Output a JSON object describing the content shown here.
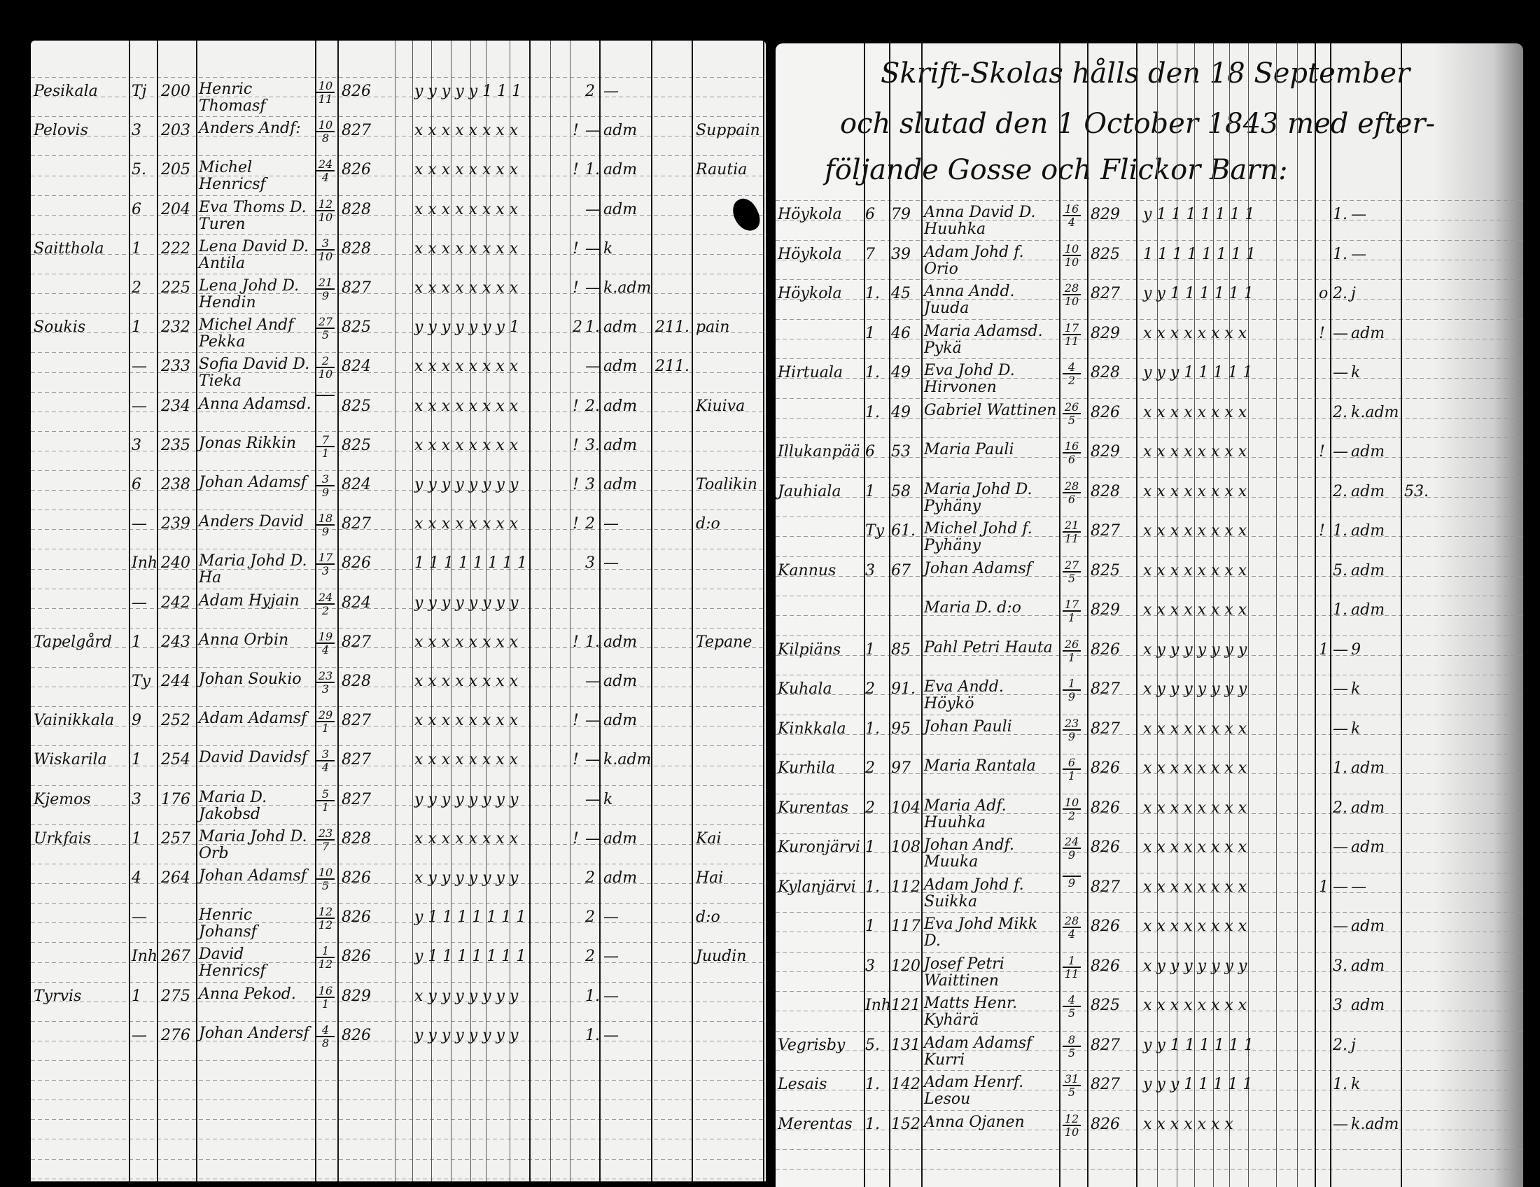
{
  "right_page_heading": {
    "line1": "Skrift-Skolas hålls den 18 September",
    "line2": "och slutad den 1 October 1843 med efter-",
    "line3": "följande Gosse och Flickor Barn:"
  },
  "left_page": {
    "rows": [
      {
        "village": "Pesikala",
        "nr": "Tj",
        "no": "200",
        "name": "Henric Thomasf",
        "day": "10",
        "month": "11",
        "year": "826",
        "marks": "y y y y y 1 1 1",
        "excl": "",
        "grade": "2",
        "status": "—",
        "extra": "",
        "note": ""
      },
      {
        "village": "Pelovis",
        "nr": "3",
        "no": "203",
        "name": "Anders Andf:",
        "day": "10",
        "month": "8",
        "year": "827",
        "marks": "x x x x x x x x",
        "excl": "!",
        "grade": "—",
        "status": "adm",
        "extra": "",
        "note": "Suppain"
      },
      {
        "village": "",
        "nr": "5.",
        "no": "205",
        "name": "Michel Henricsf",
        "day": "24",
        "month": "4",
        "year": "826",
        "marks": "x x x x x x x x",
        "excl": "!",
        "grade": "1.",
        "status": "adm",
        "extra": "",
        "note": "Rautia"
      },
      {
        "village": "",
        "nr": "6",
        "no": "204",
        "name": "Eva Thoms D. Turen",
        "day": "12",
        "month": "10",
        "year": "828",
        "marks": "x x x x x x x x",
        "excl": "",
        "grade": "—",
        "status": "adm",
        "extra": "",
        "note": ""
      },
      {
        "village": "Saitthola",
        "nr": "1",
        "no": "222",
        "name": "Lena David D. Antila",
        "day": "3",
        "month": "10",
        "year": "828",
        "marks": "x x x x x x x x",
        "excl": "!",
        "grade": "—",
        "status": "k",
        "extra": "",
        "note": ""
      },
      {
        "village": "",
        "nr": "2",
        "no": "225",
        "name": "Lena Johd D. Hendin",
        "day": "21",
        "month": "9",
        "year": "827",
        "marks": "x x x x x x x x",
        "excl": "!",
        "grade": "—",
        "status": "k.adm",
        "extra": "",
        "note": ""
      },
      {
        "village": "Soukis",
        "nr": "1",
        "no": "232",
        "name": "Michel Andf Pekka",
        "day": "27",
        "month": "5",
        "year": "825",
        "marks": "y y y y y y y 1",
        "excl": "2",
        "grade": "1.",
        "status": "adm",
        "extra": "211.",
        "note": "pain"
      },
      {
        "village": "",
        "nr": "—",
        "no": "233",
        "name": "Sofia David D. Tieka",
        "day": "2",
        "month": "10",
        "year": "824",
        "marks": "x x x x x x x x",
        "excl": "",
        "grade": "—",
        "status": "adm",
        "extra": "211.",
        "note": ""
      },
      {
        "village": "",
        "nr": "—",
        "no": "234",
        "name": "Anna Adamsd.",
        "day": "",
        "month": "",
        "year": "825",
        "marks": "x x x x x x x x",
        "excl": "!",
        "grade": "2.",
        "status": "adm",
        "extra": "",
        "note": "Kiuiva"
      },
      {
        "village": "",
        "nr": "3",
        "no": "235",
        "name": "Jonas Rikkin",
        "day": "7",
        "month": "1",
        "year": "825",
        "marks": "x x x x x x x x",
        "excl": "!",
        "grade": "3.",
        "status": "adm",
        "extra": "",
        "note": ""
      },
      {
        "village": "",
        "nr": "6",
        "no": "238",
        "name": "Johan Adamsf",
        "day": "3",
        "month": "9",
        "year": "824",
        "marks": "y y y y y y y y",
        "excl": "!",
        "grade": "3",
        "status": "adm",
        "extra": "",
        "note": "Toalikin"
      },
      {
        "village": "",
        "nr": "—",
        "no": "239",
        "name": "Anders David",
        "day": "18",
        "month": "9",
        "year": "827",
        "marks": "x x x x x x x x",
        "excl": "!",
        "grade": "2",
        "status": "—",
        "extra": "",
        "note": "d:o"
      },
      {
        "village": "",
        "nr": "Inh",
        "no": "240",
        "name": "Maria Johd D. Ha",
        "day": "17",
        "month": "3",
        "year": "826",
        "marks": "1 1 1 1 1 1 1 1",
        "excl": "",
        "grade": "3",
        "status": "—",
        "extra": "",
        "note": ""
      },
      {
        "village": "",
        "nr": "—",
        "no": "242",
        "name": "Adam Hyjain",
        "day": "24",
        "month": "2",
        "year": "824",
        "marks": "y y y y y y y y",
        "excl": "",
        "grade": "",
        "status": "",
        "extra": "",
        "note": ""
      },
      {
        "village": "Tapelgård",
        "nr": "1",
        "no": "243",
        "name": "Anna Orbin",
        "day": "19",
        "month": "4",
        "year": "827",
        "marks": "x x x x x x x x",
        "excl": "!",
        "grade": "1.",
        "status": "adm",
        "extra": "",
        "note": "Tepane"
      },
      {
        "village": "",
        "nr": "Ty",
        "no": "244",
        "name": "Johan Soukio",
        "day": "23",
        "month": "3",
        "year": "828",
        "marks": "x x x x x x x x",
        "excl": "",
        "grade": "—",
        "status": "adm",
        "extra": "",
        "note": ""
      },
      {
        "village": "Vainikkala",
        "nr": "9",
        "no": "252",
        "name": "Adam Adamsf",
        "day": "29",
        "month": "1",
        "year": "827",
        "marks": "x x x x x x x x",
        "excl": "!",
        "grade": "—",
        "status": "adm",
        "extra": "",
        "note": ""
      },
      {
        "village": "Wiskarila",
        "nr": "1",
        "no": "254",
        "name": "David Davidsf",
        "day": "3",
        "month": "4",
        "year": "827",
        "marks": "x x x x x x x x",
        "excl": "!",
        "grade": "—",
        "status": "k.adm",
        "extra": "",
        "note": ""
      },
      {
        "village": "Kjemos",
        "nr": "3",
        "no": "176",
        "name": "Maria D. Jakobsd",
        "day": "5",
        "month": "1",
        "year": "827",
        "marks": "y y y y y y y y",
        "excl": "",
        "grade": "—",
        "status": "k",
        "extra": "",
        "note": ""
      },
      {
        "village": "Urkfais",
        "nr": "1",
        "no": "257",
        "name": "Maria Johd D. Orb",
        "day": "23",
        "month": "7",
        "year": "828",
        "marks": "x x x x x x x x",
        "excl": "!",
        "grade": "—",
        "status": "adm",
        "extra": "",
        "note": "Kai"
      },
      {
        "village": "",
        "nr": "4",
        "no": "264",
        "name": "Johan Adamsf",
        "day": "10",
        "month": "5",
        "year": "826",
        "marks": "x y y y y y y y",
        "excl": "",
        "grade": "2",
        "status": "adm",
        "extra": "",
        "note": "Hai"
      },
      {
        "village": "",
        "nr": "—",
        "no": "",
        "name": "Henric Johansf",
        "day": "12",
        "month": "12",
        "year": "826",
        "marks": "y 1 1 1 1 1 1 1",
        "excl": "",
        "grade": "2",
        "status": "—",
        "extra": "",
        "note": "d:o"
      },
      {
        "village": "",
        "nr": "Inh",
        "no": "267",
        "name": "David Henricsf",
        "day": "1",
        "month": "12",
        "year": "826",
        "marks": "y 1 1 1 1 1 1 1",
        "excl": "",
        "grade": "2",
        "status": "—",
        "extra": "",
        "note": "Juudin"
      },
      {
        "village": "Tyrvis",
        "nr": "1",
        "no": "275",
        "name": "Anna Pekod.",
        "day": "16",
        "month": "1",
        "year": "829",
        "marks": "x y y y y y y y",
        "excl": "",
        "grade": "1.",
        "status": "—",
        "extra": "",
        "note": ""
      },
      {
        "village": "",
        "nr": "—",
        "no": "276",
        "name": "Johan Andersf",
        "day": "4",
        "month": "8",
        "year": "826",
        "marks": "y y y y y y y y",
        "excl": "",
        "grade": "1.",
        "status": "—",
        "extra": "",
        "note": ""
      }
    ]
  },
  "right_page": {
    "rows": [
      {
        "village": "Höykola",
        "nr": "6",
        "no": "79",
        "name": "Anna David D. Huuhka",
        "day": "16",
        "month": "4",
        "year": "829",
        "marks": "y 1 1 1 1 1 1 1",
        "excl": "",
        "grade": "1.",
        "status": "—",
        "extra": ""
      },
      {
        "village": "Höykola",
        "nr": "7",
        "no": "39",
        "name": "Adam Johd f. Orio",
        "day": "10",
        "month": "10",
        "year": "825",
        "marks": "1 1 1 1 1 1 1 1",
        "excl": "",
        "grade": "1.",
        "status": "—",
        "extra": ""
      },
      {
        "village": "Höykola",
        "nr": "1.",
        "no": "45",
        "name": "Anna Andd. Juuda",
        "day": "28",
        "month": "10",
        "year": "827",
        "marks": "y y 1 1 1 1 1 1",
        "excl": "o",
        "grade": "2.",
        "status": "j",
        "extra": ""
      },
      {
        "village": "",
        "nr": "1",
        "no": "46",
        "name": "Maria Adamsd. Pykä",
        "day": "17",
        "month": "11",
        "year": "829",
        "marks": "x x x x x x x x",
        "excl": "!",
        "grade": "—",
        "status": "adm",
        "extra": ""
      },
      {
        "village": "Hirtuala",
        "nr": "1.",
        "no": "49",
        "name": "Eva Johd D. Hirvonen",
        "day": "4",
        "month": "2",
        "year": "828",
        "marks": "y y y 1 1 1 1 1",
        "excl": "",
        "grade": "—",
        "status": "k",
        "extra": ""
      },
      {
        "village": "",
        "nr": "1.",
        "no": "49",
        "name": "Gabriel Wattinen",
        "day": "26",
        "month": "5",
        "year": "826",
        "marks": "x x x x x x x x",
        "excl": "",
        "grade": "2.",
        "status": "k.adm",
        "extra": ""
      },
      {
        "village": "Illukanpää",
        "nr": "6",
        "no": "53",
        "name": "Maria Pauli",
        "day": "16",
        "month": "6",
        "year": "829",
        "marks": "x x x x x x x x",
        "excl": "!",
        "grade": "—",
        "status": "adm",
        "extra": ""
      },
      {
        "village": "Jauhiala",
        "nr": "1",
        "no": "58",
        "name": "Maria Johd D. Pyhäny",
        "day": "28",
        "month": "6",
        "year": "828",
        "marks": "x x x x x x x x",
        "excl": "",
        "grade": "2.",
        "status": "adm",
        "extra": "53."
      },
      {
        "village": "",
        "nr": "Ty",
        "no": "61.",
        "name": "Michel Johd f. Pyhäny",
        "day": "21",
        "month": "11",
        "year": "827",
        "marks": "x x x x x x x x",
        "excl": "!",
        "grade": "1.",
        "status": "adm",
        "extra": ""
      },
      {
        "village": "Kannus",
        "nr": "3",
        "no": "67",
        "name": "Johan Adamsf",
        "day": "27",
        "month": "5",
        "year": "825",
        "marks": "x x x x x x x x",
        "excl": "",
        "grade": "5.",
        "status": "adm",
        "extra": ""
      },
      {
        "village": "",
        "nr": "",
        "no": "",
        "name": "Maria D. d:o",
        "day": "17",
        "month": "1",
        "year": "829",
        "marks": "x x x x x x x x",
        "excl": "",
        "grade": "1.",
        "status": "adm",
        "extra": ""
      },
      {
        "village": "Kilpiäns",
        "nr": "1",
        "no": "85",
        "name": "Pahl Petri Hauta",
        "day": "26",
        "month": "1",
        "year": "826",
        "marks": "x y y y y y y y",
        "excl": "1",
        "grade": "—",
        "status": "9",
        "extra": ""
      },
      {
        "village": "Kuhala",
        "nr": "2",
        "no": "91.",
        "name": "Eva Andd. Höykö",
        "day": "1",
        "month": "9",
        "year": "827",
        "marks": "x y y y y y y y",
        "excl": "",
        "grade": "—",
        "status": "k",
        "extra": ""
      },
      {
        "village": "Kinkkala",
        "nr": "1.",
        "no": "95",
        "name": "Johan Pauli",
        "day": "23",
        "month": "9",
        "year": "827",
        "marks": "x x x x x x x x",
        "excl": "",
        "grade": "—",
        "status": "k",
        "extra": ""
      },
      {
        "village": "Kurhila",
        "nr": "2",
        "no": "97",
        "name": "Maria Rantala",
        "day": "6",
        "month": "1",
        "year": "826",
        "marks": "x x x x x x x x",
        "excl": "",
        "grade": "1.",
        "status": "adm",
        "extra": ""
      },
      {
        "village": "Kurentas",
        "nr": "2",
        "no": "104",
        "name": "Maria Adf. Huuhka",
        "day": "10",
        "month": "2",
        "year": "826",
        "marks": "x x x x x x x x",
        "excl": "",
        "grade": "2.",
        "status": "adm",
        "extra": ""
      },
      {
        "village": "Kuronjärvi",
        "nr": "1",
        "no": "108",
        "name": "Johan Andf. Muuka",
        "day": "24",
        "month": "9",
        "year": "826",
        "marks": "x x x x x x x x",
        "excl": "",
        "grade": "—",
        "status": "adm",
        "extra": ""
      },
      {
        "village": "Kylanjärvi",
        "nr": "1.",
        "no": "112",
        "name": "Adam Johd f. Suikka",
        "day": "",
        "month": "9",
        "year": "827",
        "marks": "x x x x x x x x",
        "excl": "1",
        "grade": "—",
        "status": "—",
        "extra": ""
      },
      {
        "village": "",
        "nr": "1",
        "no": "117",
        "name": "Eva Johd Mikk D.",
        "day": "28",
        "month": "4",
        "year": "826",
        "marks": "x x x x x x x x",
        "excl": "",
        "grade": "—",
        "status": "adm",
        "extra": ""
      },
      {
        "village": "",
        "nr": "3",
        "no": "120",
        "name": "Josef Petri Waittinen",
        "day": "1",
        "month": "11",
        "year": "826",
        "marks": "x y y y y y y y",
        "excl": "",
        "grade": "3.",
        "status": "adm",
        "extra": ""
      },
      {
        "village": "",
        "nr": "Inh",
        "no": "121",
        "name": "Matts Henr. Kyhärä",
        "day": "4",
        "month": "5",
        "year": "825",
        "marks": "x x x x x x x x",
        "excl": "",
        "grade": "3",
        "status": "adm",
        "extra": ""
      },
      {
        "village": "Vegrisby",
        "nr": "5.",
        "no": "131",
        "name": "Adam Adamsf Kurri",
        "day": "8",
        "month": "5",
        "year": "827",
        "marks": "y y 1 1 1 1 1 1",
        "excl": "",
        "grade": "2.",
        "status": "j",
        "extra": ""
      },
      {
        "village": "Lesais",
        "nr": "1.",
        "no": "142",
        "name": "Adam Henrf. Lesou",
        "day": "31",
        "month": "5",
        "year": "827",
        "marks": "y y y 1 1 1 1 1",
        "excl": "",
        "grade": "1.",
        "status": "k",
        "extra": ""
      },
      {
        "village": "Merentas",
        "nr": "1.",
        "no": "152",
        "name": "Anna Ojanen",
        "day": "12",
        "month": "10",
        "year": "826",
        "marks": "x x x x x x x",
        "excl": "",
        "grade": "—",
        "status": "k.adm",
        "extra": ""
      }
    ]
  }
}
